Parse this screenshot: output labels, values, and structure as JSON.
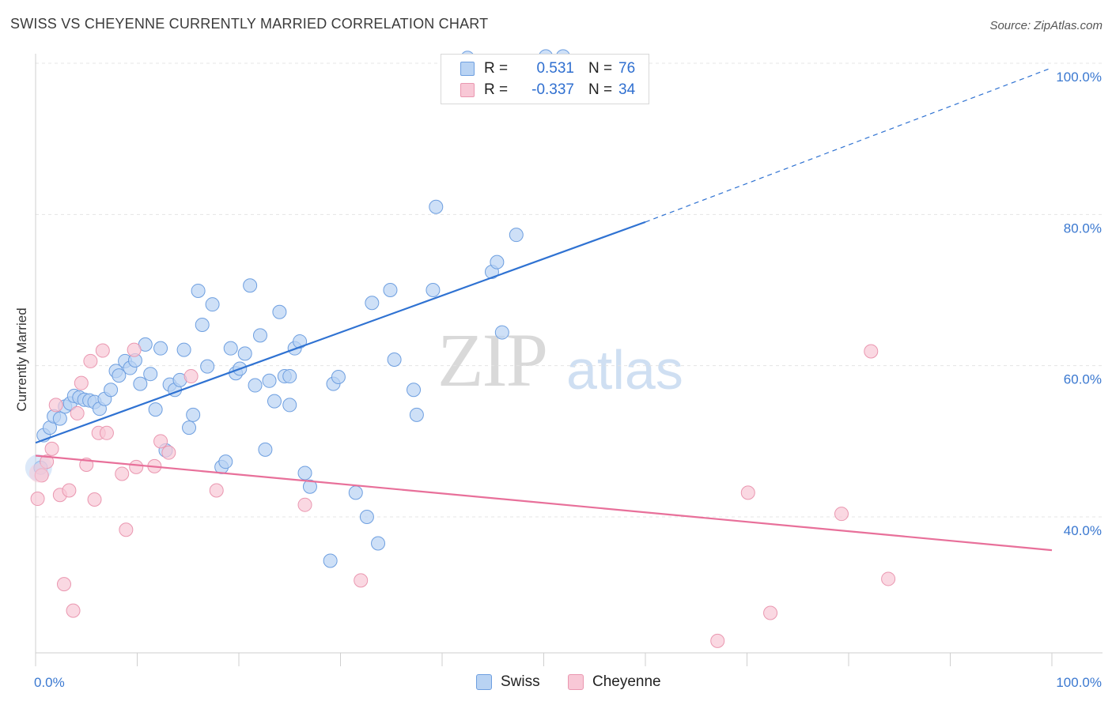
{
  "header": {
    "title": "SWISS VS CHEYENNE CURRENTLY MARRIED CORRELATION CHART",
    "source": "Source: ZipAtlas.com"
  },
  "watermark": {
    "zip": "ZIP",
    "atlas": "atlas"
  },
  "legend": {
    "rows": [
      {
        "r_label": "R =",
        "r_value": "0.531",
        "n_label": "N =",
        "n_value": "76"
      },
      {
        "r_label": "R =",
        "r_value": "-0.337",
        "n_label": "N =",
        "n_value": "34"
      }
    ]
  },
  "bottom_legend": {
    "swiss": "Swiss",
    "cheyenne": "Cheyenne"
  },
  "colors": {
    "swiss_fill": "#b9d3f3",
    "swiss_stroke": "#6e9fe0",
    "swiss_line": "#2f72d2",
    "cheyenne_fill": "#f8c8d6",
    "cheyenne_stroke": "#ea97b0",
    "cheyenne_line": "#e8709a",
    "tick_text": "#3a78d0",
    "grid": "#e4e4e4"
  },
  "chart_data": {
    "type": "scatter",
    "title": "SWISS VS CHEYENNE CURRENTLY MARRIED CORRELATION CHART",
    "xlabel": "",
    "ylabel": "Currently Married",
    "xlim": [
      0,
      100
    ],
    "ylim": [
      20,
      102
    ],
    "x_tick_labels": [
      "0.0%",
      "100.0%"
    ],
    "y_ticks": [
      40,
      60,
      80,
      100
    ],
    "y_tick_labels": [
      "40.0%",
      "60.0%",
      "80.0%",
      "100.0%"
    ],
    "grid": "horizontal dashed",
    "legend_position": "top-center",
    "series": [
      {
        "name": "Swiss",
        "r": 0.531,
        "n": 76,
        "trend": {
          "x0": 0,
          "y0": 49.8,
          "x1": 60,
          "y1": 79.0,
          "dashed_to_x": 100,
          "dashed_to_y": 99.4
        },
        "points": [
          [
            0.5,
            46.5
          ],
          [
            0.8,
            50.8
          ],
          [
            1.4,
            51.8
          ],
          [
            1.8,
            53.3
          ],
          [
            2.4,
            53.0
          ],
          [
            2.9,
            54.6
          ],
          [
            3.4,
            55.0
          ],
          [
            3.8,
            56.0
          ],
          [
            4.3,
            55.8
          ],
          [
            4.8,
            55.5
          ],
          [
            5.3,
            55.4
          ],
          [
            5.8,
            55.2
          ],
          [
            6.3,
            54.3
          ],
          [
            6.8,
            55.6
          ],
          [
            7.4,
            56.8
          ],
          [
            7.9,
            59.3
          ],
          [
            8.2,
            58.7
          ],
          [
            8.8,
            60.6
          ],
          [
            9.3,
            59.7
          ],
          [
            9.8,
            60.7
          ],
          [
            10.3,
            57.6
          ],
          [
            10.8,
            62.8
          ],
          [
            11.3,
            58.9
          ],
          [
            11.8,
            54.2
          ],
          [
            12.3,
            62.3
          ],
          [
            12.8,
            48.8
          ],
          [
            13.2,
            57.5
          ],
          [
            13.7,
            56.8
          ],
          [
            14.2,
            58.1
          ],
          [
            14.6,
            62.1
          ],
          [
            15.1,
            51.8
          ],
          [
            15.5,
            53.5
          ],
          [
            16.0,
            69.9
          ],
          [
            16.4,
            65.4
          ],
          [
            16.9,
            59.9
          ],
          [
            17.4,
            68.1
          ],
          [
            18.3,
            46.6
          ],
          [
            18.7,
            47.3
          ],
          [
            19.2,
            62.3
          ],
          [
            19.7,
            59.0
          ],
          [
            20.1,
            59.6
          ],
          [
            20.6,
            61.6
          ],
          [
            21.1,
            70.6
          ],
          [
            21.6,
            57.4
          ],
          [
            22.1,
            64.0
          ],
          [
            22.6,
            48.9
          ],
          [
            23.0,
            58.0
          ],
          [
            23.5,
            55.3
          ],
          [
            24.0,
            67.1
          ],
          [
            24.5,
            58.6
          ],
          [
            25.0,
            54.8
          ],
          [
            25.5,
            62.3
          ],
          [
            26.0,
            63.2
          ],
          [
            26.5,
            45.8
          ],
          [
            27.0,
            44.0
          ],
          [
            29.3,
            57.6
          ],
          [
            29.8,
            58.5
          ],
          [
            31.5,
            43.2
          ],
          [
            32.6,
            40.0
          ],
          [
            33.1,
            68.3
          ],
          [
            33.7,
            36.5
          ],
          [
            34.9,
            70.0
          ],
          [
            35.3,
            60.8
          ],
          [
            37.2,
            56.8
          ],
          [
            37.5,
            53.5
          ],
          [
            39.1,
            70.0
          ],
          [
            39.4,
            81.0
          ],
          [
            44.9,
            72.4
          ],
          [
            45.4,
            73.7
          ],
          [
            45.9,
            64.4
          ],
          [
            47.3,
            77.3
          ],
          [
            42.5,
            100.7
          ],
          [
            50.2,
            100.9
          ],
          [
            51.9,
            100.9
          ],
          [
            25.0,
            58.6
          ],
          [
            29.0,
            34.2
          ]
        ]
      },
      {
        "name": "Cheyenne",
        "r": -0.337,
        "n": 34,
        "trend": {
          "x0": 0,
          "y0": 48.1,
          "x1": 100,
          "y1": 35.6
        },
        "points": [
          [
            0.2,
            42.4
          ],
          [
            0.6,
            45.5
          ],
          [
            1.1,
            47.3
          ],
          [
            1.6,
            49.0
          ],
          [
            2.0,
            54.8
          ],
          [
            2.4,
            42.9
          ],
          [
            2.8,
            31.1
          ],
          [
            3.3,
            43.5
          ],
          [
            3.7,
            27.6
          ],
          [
            4.1,
            53.7
          ],
          [
            4.5,
            57.7
          ],
          [
            5.0,
            46.9
          ],
          [
            5.4,
            60.6
          ],
          [
            5.8,
            42.3
          ],
          [
            6.2,
            51.1
          ],
          [
            6.6,
            62.0
          ],
          [
            7.0,
            51.1
          ],
          [
            8.5,
            45.7
          ],
          [
            8.9,
            38.3
          ],
          [
            9.7,
            62.1
          ],
          [
            9.9,
            46.6
          ],
          [
            11.7,
            46.7
          ],
          [
            12.3,
            50.0
          ],
          [
            13.1,
            48.5
          ],
          [
            15.3,
            58.6
          ],
          [
            17.8,
            43.5
          ],
          [
            26.5,
            41.6
          ],
          [
            32.0,
            31.6
          ],
          [
            67.1,
            23.6
          ],
          [
            70.1,
            43.2
          ],
          [
            72.3,
            27.3
          ],
          [
            79.3,
            40.4
          ],
          [
            82.2,
            61.9
          ],
          [
            83.9,
            31.8
          ]
        ]
      }
    ]
  }
}
